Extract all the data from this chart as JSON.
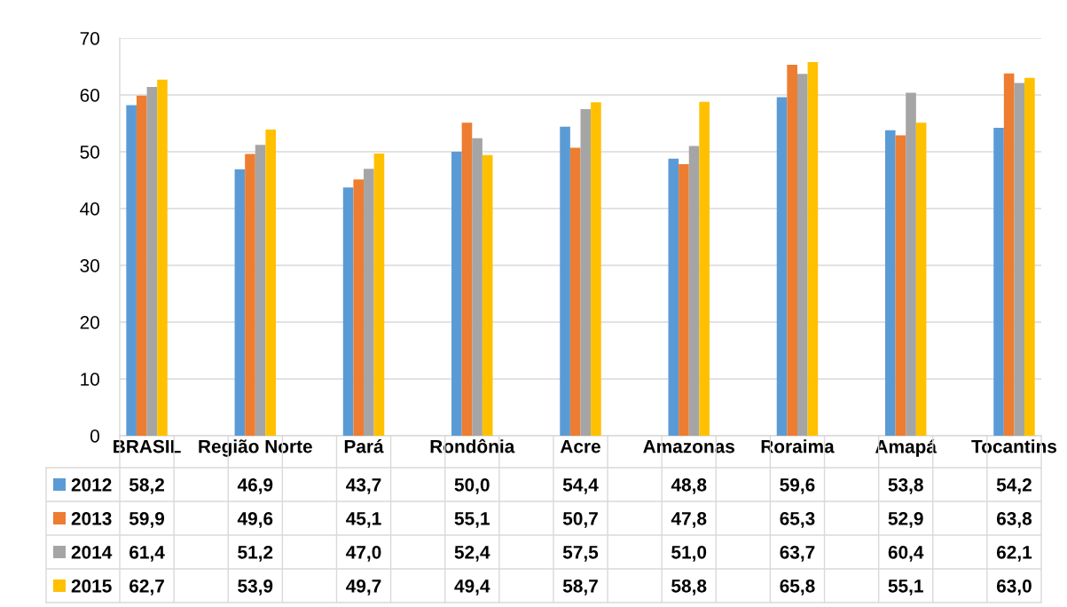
{
  "chart_data": {
    "type": "bar",
    "categories": [
      "BRASIL",
      null,
      "Região Norte",
      null,
      "Pará",
      null,
      "Rondônia",
      null,
      "Acre",
      null,
      "Amazonas",
      null,
      "Roraima",
      null,
      "Amapá",
      null,
      "Tocantins"
    ],
    "series": [
      {
        "name": "2012",
        "color": "#5b9bd5",
        "values": [
          58.2,
          null,
          46.9,
          null,
          43.7,
          null,
          50.0,
          null,
          54.4,
          null,
          48.8,
          null,
          59.6,
          null,
          53.8,
          null,
          54.2
        ],
        "value_labels": [
          "58,2",
          null,
          "46,9",
          null,
          "43,7",
          null,
          "50,0",
          null,
          "54,4",
          null,
          "48,8",
          null,
          "59,6",
          null,
          "53,8",
          null,
          "54,2"
        ]
      },
      {
        "name": "2013",
        "color": "#ed7d31",
        "values": [
          59.9,
          null,
          49.6,
          null,
          45.1,
          null,
          55.1,
          null,
          50.7,
          null,
          47.8,
          null,
          65.3,
          null,
          52.9,
          null,
          63.8
        ],
        "value_labels": [
          "59,9",
          null,
          "49,6",
          null,
          "45,1",
          null,
          "55,1",
          null,
          "50,7",
          null,
          "47,8",
          null,
          "65,3",
          null,
          "52,9",
          null,
          "63,8"
        ]
      },
      {
        "name": "2014",
        "color": "#a5a5a5",
        "values": [
          61.4,
          null,
          51.2,
          null,
          47.0,
          null,
          52.4,
          null,
          57.5,
          null,
          51.0,
          null,
          63.7,
          null,
          60.4,
          null,
          62.1
        ],
        "value_labels": [
          "61,4",
          null,
          "51,2",
          null,
          "47,0",
          null,
          "52,4",
          null,
          "57,5",
          null,
          "51,0",
          null,
          "63,7",
          null,
          "60,4",
          null,
          "62,1"
        ]
      },
      {
        "name": "2015",
        "color": "#ffc000",
        "values": [
          62.7,
          null,
          53.9,
          null,
          49.7,
          null,
          49.4,
          null,
          58.7,
          null,
          58.8,
          null,
          65.8,
          null,
          55.1,
          null,
          63.0
        ],
        "value_labels": [
          "62,7",
          null,
          "53,9",
          null,
          "49,7",
          null,
          "49,4",
          null,
          "58,7",
          null,
          "58,8",
          null,
          "65,8",
          null,
          "55,1",
          null,
          "63,0"
        ]
      }
    ],
    "ylim": [
      0,
      70
    ],
    "yticks": [
      0,
      10,
      20,
      30,
      40,
      50,
      60,
      70
    ],
    "grid": "y",
    "legend": "bottom left"
  }
}
